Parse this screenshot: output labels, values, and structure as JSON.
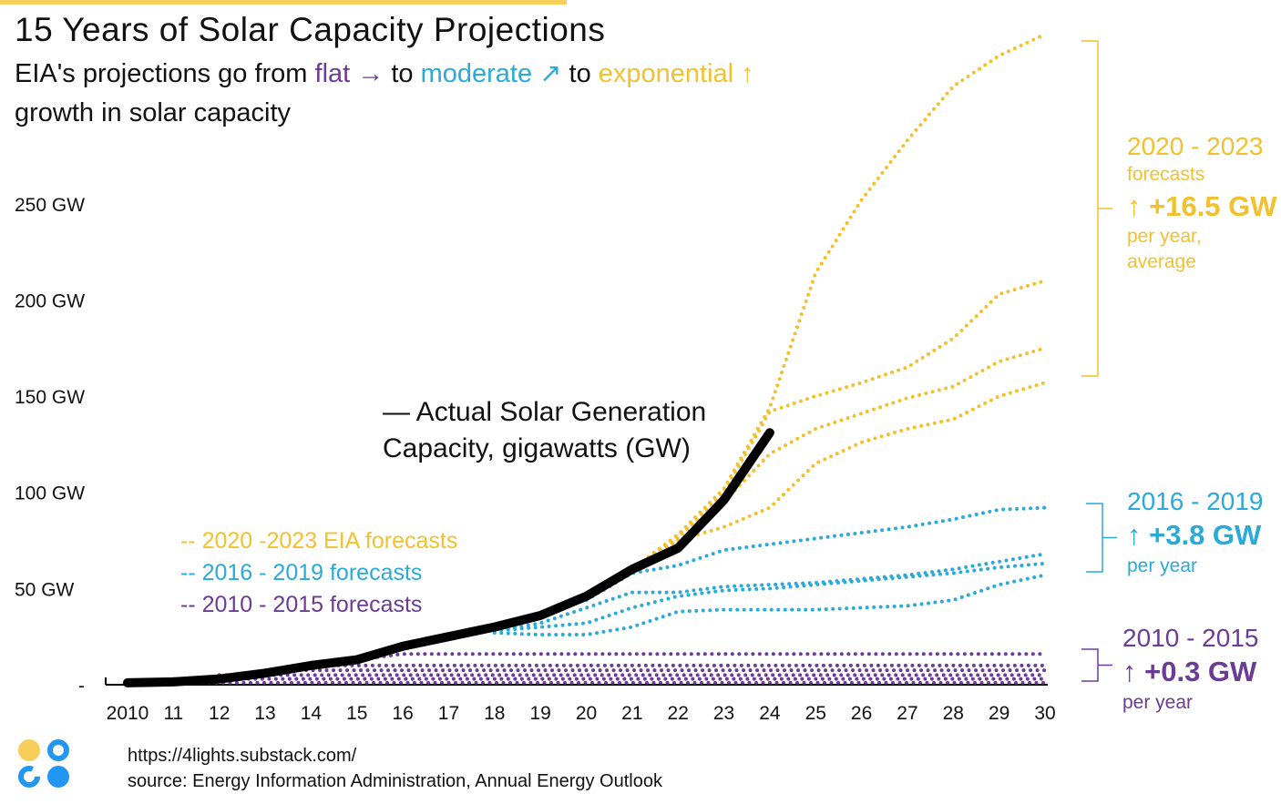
{
  "colors": {
    "yellow": "#f2c12e",
    "blue": "#2aaad8",
    "purple": "#6b3b96",
    "actual": "#000000",
    "topbar": "#f6cf5a"
  },
  "title": "15 Years of Solar Capacity Projections",
  "subtitle": {
    "part1": "EIA's projections go from ",
    "flat": "flat →",
    "part2": " to ",
    "moderate": "moderate ↗",
    "part3": " to ",
    "exponential": "exponential ↑",
    "part4": "growth in solar capacity"
  },
  "footer": {
    "url": "https://4lights.substack.com/",
    "source": "source: Energy Information Administration, Annual Energy Outlook",
    "logo_icon": "four-circles-logo"
  },
  "chart_data": {
    "type": "line",
    "title": "15 Years of Solar Capacity Projections",
    "xlabel": "",
    "ylabel": "",
    "xlim": [
      2010,
      2030
    ],
    "ylim": [
      0,
      340
    ],
    "grid": false,
    "x_ticks": [
      2010,
      2011,
      2012,
      2013,
      2014,
      2015,
      2016,
      2017,
      2018,
      2019,
      2020,
      2021,
      2022,
      2023,
      2024,
      2025,
      2026,
      2027,
      2028,
      2029,
      2030
    ],
    "x_tick_labels": [
      "2010",
      "11",
      "12",
      "13",
      "14",
      "15",
      "16",
      "17",
      "18",
      "19",
      "20",
      "21",
      "22",
      "23",
      "24",
      "25",
      "26",
      "27",
      "28",
      "29",
      "30"
    ],
    "y_ticks": [
      0,
      50,
      100,
      150,
      200,
      250
    ],
    "y_tick_labels": [
      "-",
      "50 GW",
      "100 GW",
      "150 GW",
      "200 GW",
      "250 GW"
    ],
    "actual": {
      "label_line1": "— Actual Solar Generation",
      "label_line2": "Capacity, gigawatts (GW)",
      "x": [
        2010,
        2011,
        2012,
        2013,
        2014,
        2015,
        2016,
        2017,
        2018,
        2019,
        2020,
        2021,
        2022,
        2023,
        2024
      ],
      "y": [
        1,
        1.5,
        3,
        6,
        10,
        13,
        20,
        25,
        30,
        36,
        46,
        60,
        71,
        96,
        131
      ]
    },
    "legend": [
      {
        "label": "-- 2020 -2023 EIA forecasts",
        "group": "yellow"
      },
      {
        "label": "-- 2016 - 2019 forecasts",
        "group": "blue"
      },
      {
        "label": "-- 2010 - 2015 forecasts",
        "group": "purple"
      }
    ],
    "forecasts": [
      {
        "group": "yellow",
        "x": [
          2021,
          2022,
          2023,
          2024,
          2025,
          2026,
          2027,
          2028,
          2029,
          2030
        ],
        "y": [
          60,
          78,
          102,
          144,
          214,
          252,
          283,
          311,
          327,
          338
        ]
      },
      {
        "group": "yellow",
        "x": [
          2021,
          2022,
          2023,
          2024,
          2025,
          2026,
          2027,
          2028,
          2029,
          2030
        ],
        "y": [
          60,
          76,
          100,
          142,
          150,
          157,
          165,
          180,
          203,
          210
        ]
      },
      {
        "group": "yellow",
        "x": [
          2021,
          2022,
          2023,
          2024,
          2025,
          2026,
          2027,
          2028,
          2029,
          2030
        ],
        "y": [
          60,
          78,
          95,
          120,
          133,
          141,
          149,
          155,
          168,
          175
        ]
      },
      {
        "group": "yellow",
        "x": [
          2021,
          2022,
          2023,
          2024,
          2025,
          2026,
          2027,
          2028,
          2029,
          2030
        ],
        "y": [
          60,
          75,
          82,
          92,
          115,
          126,
          133,
          138,
          150,
          157
        ]
      },
      {
        "group": "blue",
        "x": [
          2019,
          2020,
          2021,
          2022,
          2023,
          2024,
          2025,
          2026,
          2027,
          2028,
          2029,
          2030
        ],
        "y": [
          37,
          44,
          58,
          62,
          70,
          73,
          76,
          79,
          82,
          86,
          91,
          92
        ]
      },
      {
        "group": "blue",
        "x": [
          2018,
          2019,
          2020,
          2021,
          2022,
          2023,
          2024,
          2025,
          2026,
          2027,
          2028,
          2029,
          2030
        ],
        "y": [
          28,
          32,
          40,
          48,
          48,
          51,
          52,
          53,
          55,
          57,
          60,
          64,
          68
        ]
      },
      {
        "group": "blue",
        "x": [
          2018,
          2019,
          2020,
          2021,
          2022,
          2023,
          2024,
          2025,
          2026,
          2027,
          2028,
          2029,
          2030
        ],
        "y": [
          28,
          30,
          32,
          40,
          46,
          49,
          50,
          52,
          54,
          56,
          58,
          61,
          63
        ]
      },
      {
        "group": "blue",
        "x": [
          2018,
          2019,
          2020,
          2021,
          2022,
          2023,
          2024,
          2025,
          2026,
          2027,
          2028,
          2029,
          2030
        ],
        "y": [
          27,
          26,
          26,
          30,
          38,
          39,
          39,
          39,
          40,
          41,
          44,
          52,
          57
        ]
      },
      {
        "group": "purple",
        "x": [
          2015,
          2016,
          2030
        ],
        "y": [
          13,
          16,
          16
        ]
      },
      {
        "group": "purple",
        "x": [
          2014,
          2030
        ],
        "y": [
          10,
          10
        ]
      },
      {
        "group": "purple",
        "x": [
          2013,
          2030
        ],
        "y": [
          7.5,
          7.5
        ]
      },
      {
        "group": "purple",
        "x": [
          2012,
          2030
        ],
        "y": [
          5,
          5
        ]
      },
      {
        "group": "purple",
        "x": [
          2011,
          2030
        ],
        "y": [
          3,
          3
        ]
      },
      {
        "group": "purple",
        "x": [
          2010,
          2030
        ],
        "y": [
          1,
          1
        ]
      }
    ],
    "annotations": [
      {
        "group": "yellow",
        "years": "2020 - 2023",
        "line2": "forecasts",
        "value": "↑ +16.5 GW",
        "note1": "per year,",
        "note2": "average"
      },
      {
        "group": "blue",
        "years": "2016 - 2019",
        "value": "↑ +3.8 GW",
        "note1": "per year"
      },
      {
        "group": "purple",
        "years": "2010 - 2015",
        "value": "↑ +0.3 GW",
        "note1": "per year"
      }
    ]
  }
}
